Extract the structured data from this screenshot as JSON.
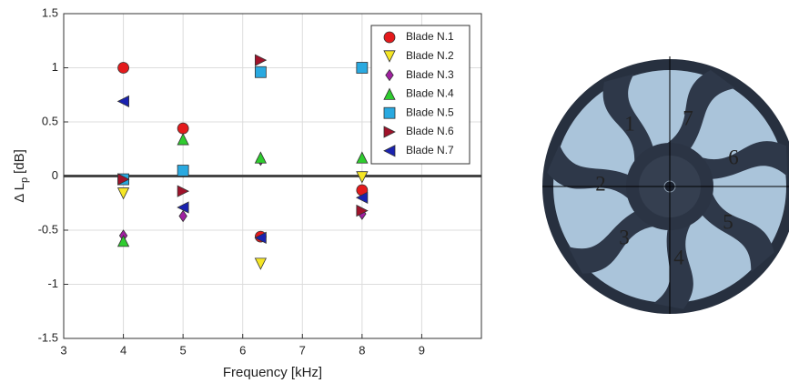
{
  "chart_data": {
    "type": "scatter",
    "xlabel": "Frequency [kHz]",
    "ylabel": {
      "main": "Δ L",
      "sub": "p",
      "unit": "[dB]"
    },
    "xlim": [
      3,
      10
    ],
    "xticks": [
      3,
      4,
      5,
      6,
      7,
      8,
      9
    ],
    "ylim": [
      -1.5,
      1.5
    ],
    "yticks": [
      -1.5,
      -1,
      -0.5,
      0,
      0.5,
      1,
      1.5
    ],
    "grid": true,
    "legend": "upper right",
    "series": [
      {
        "name": "Blade N.1",
        "color": "#e41a1c",
        "marker": "circle",
        "x": [
          4,
          5,
          6.3,
          8
        ],
        "values": [
          1.0,
          0.44,
          -0.56,
          -0.13
        ]
      },
      {
        "name": "Blade N.2",
        "color": "#f5e625",
        "marker": "triangle-down",
        "x": [
          4,
          5,
          6.3,
          8
        ],
        "values": [
          -0.16,
          0.04,
          -0.81,
          -0.01
        ]
      },
      {
        "name": "Blade N.3",
        "color": "#a020a0",
        "marker": "diamond",
        "x": [
          4,
          5,
          6.3,
          8
        ],
        "values": [
          -0.55,
          -0.37,
          0.15,
          -0.35
        ]
      },
      {
        "name": "Blade N.4",
        "color": "#2ecc2e",
        "marker": "triangle-up",
        "x": [
          4,
          5,
          6.3,
          8
        ],
        "values": [
          -0.6,
          0.34,
          0.17,
          0.17
        ]
      },
      {
        "name": "Blade N.5",
        "color": "#29a9e0",
        "marker": "square",
        "x": [
          4,
          5,
          6.3,
          8
        ],
        "values": [
          -0.03,
          0.05,
          0.96,
          1.0
        ]
      },
      {
        "name": "Blade N.6",
        "color": "#a0122a",
        "marker": "triangle-right",
        "x": [
          4,
          5,
          6.3,
          8
        ],
        "values": [
          -0.03,
          -0.14,
          1.07,
          -0.32
        ]
      },
      {
        "name": "Blade N.7",
        "color": "#1a22b0",
        "marker": "triangle-left",
        "x": [
          4,
          5,
          6.3,
          8
        ],
        "values": [
          0.69,
          -0.29,
          -0.57,
          -0.2
        ]
      }
    ]
  },
  "photo": {
    "labels": [
      {
        "text": "1",
        "color": "#e41a1c"
      },
      {
        "text": "2",
        "color": "#f5d525"
      },
      {
        "text": "3",
        "color": "#9a2aa0"
      },
      {
        "text": "4",
        "color": "#1faa2a"
      },
      {
        "text": "5",
        "color": "#2a8ee0"
      },
      {
        "text": "6",
        "color": "#e41a1c"
      },
      {
        "text": "7",
        "color": "#2a3ad0"
      }
    ]
  }
}
